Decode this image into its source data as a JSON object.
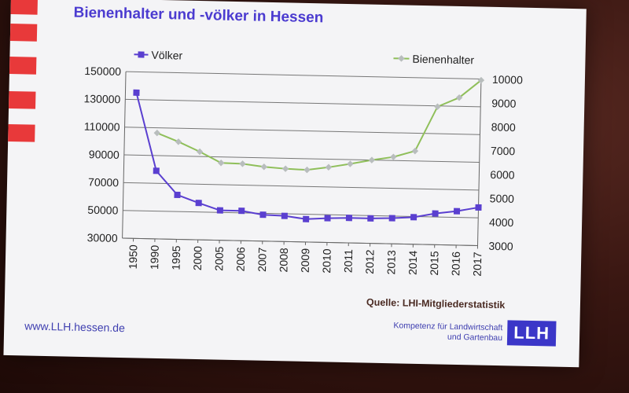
{
  "slide": {
    "title": "Bienenhalter und -völker in Hessen",
    "source": "Quelle: LHI-Mitgliederstatistik",
    "url": "www.LLH.hessen.de",
    "tagline_line1": "Kompetenz für Landwirtschaft",
    "tagline_line2": "und Gartenbau",
    "logo_text": "LLH"
  },
  "colors": {
    "voelker": "#5a3fd0",
    "bienenhalter": "#8fbf5a",
    "bienenhalter_marker": "#b8bdbd",
    "accent_red": "#e8393a"
  },
  "chart_data": {
    "type": "line",
    "categories": [
      "1950",
      "1990",
      "1995",
      "2000",
      "2005",
      "2006",
      "2007",
      "2008",
      "2009",
      "2010",
      "2011",
      "2012",
      "2013",
      "2014",
      "2015",
      "2016",
      "2017"
    ],
    "y_left": {
      "ylim": [
        30000,
        150000
      ],
      "ticks": [
        "150000",
        "130000",
        "110000",
        "90000",
        "70000",
        "50000",
        "30000"
      ]
    },
    "y_right": {
      "ylim": [
        3000,
        10000
      ],
      "ticks": [
        "10000",
        "9000",
        "8000",
        "7000",
        "6000",
        "5000",
        "4000",
        "3000"
      ]
    },
    "grid": true,
    "series": [
      {
        "name": "Völker",
        "axis": "left",
        "values": [
          135000,
          79000,
          62000,
          56500,
          51500,
          51500,
          49000,
          48500,
          46500,
          47500,
          48000,
          48000,
          48500,
          49500,
          52500,
          54500,
          57500
        ]
      },
      {
        "name": "Bienenhalter",
        "axis": "right",
        "values": [
          null,
          7450,
          7100,
          6700,
          6250,
          6230,
          6120,
          6060,
          6030,
          6160,
          6320,
          6500,
          6650,
          6920,
          8800,
          9200,
          9950
        ]
      }
    ]
  }
}
